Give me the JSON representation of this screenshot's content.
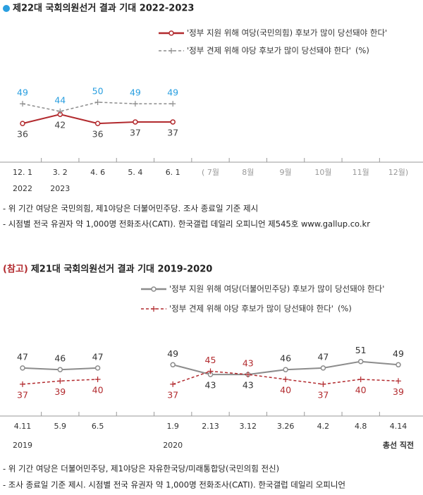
{
  "chart_data": [
    {
      "type": "line",
      "title": "제22대 국회의원선거 결과 기대 2022-2023",
      "categories": [
        "12. 1",
        "3. 2",
        "4. 6",
        "5. 4",
        "6. 1",
        "( 7월",
        "8월",
        "9월",
        "10월",
        "11월",
        "12월)"
      ],
      "sublabels": [
        "2022",
        "2023",
        null,
        null,
        null,
        null,
        null,
        null,
        null,
        null,
        null
      ],
      "series": [
        {
          "name": "'정부 지원 위해 여당(국민의힘) 후보가 많이 당선돼야 한다'",
          "color": "#b22a2e",
          "label_color": "#444444",
          "style": "solid",
          "values": [
            36,
            42,
            36,
            37,
            37,
            null,
            null,
            null,
            null,
            null,
            null
          ]
        },
        {
          "name": "'정부 견제 위해 야당 후보가 많이 당선돼야 한다'",
          "color": "#8c8c8c",
          "label_color": "#2a9fe0",
          "style": "dashed",
          "values": [
            49,
            44,
            50,
            49,
            49,
            null,
            null,
            null,
            null,
            null,
            null
          ]
        }
      ],
      "unit": "(%)",
      "notes": [
        "- 위 기간 여당은 국민의힘, 제1야당은 더불어민주당. 조사 종료일 기준 제시",
        "- 시점별 전국 유권자 약 1,000명 전화조사(CATI). 한국갤럽 데일리 오피니언 제545호 www.gallup.co.kr"
      ]
    },
    {
      "type": "line",
      "title_prefix": "(참고)",
      "title": "제21대 국회의원선거 결과 기대 2019-2020",
      "categories": [
        "4.11",
        "5.9",
        "6.5",
        null,
        "1.9",
        "2.13",
        "3.12",
        "3.26",
        "4.2",
        "4.8",
        "4.14"
      ],
      "sublabels": [
        "2019",
        null,
        null,
        null,
        "2020",
        null,
        null,
        null,
        null,
        null,
        "총선 직전"
      ],
      "series": [
        {
          "name": "'정부 지원 위해 여당(더불어민주당) 후보가 많이 당선돼야 한다'",
          "color": "#8c8c8c",
          "label_color": "#333333",
          "style": "solid",
          "values": [
            47,
            46,
            47,
            null,
            49,
            43,
            43,
            46,
            47,
            51,
            49
          ]
        },
        {
          "name": "'정부 견제 위해 야당 후보가 많이 당선돼야 한다'",
          "color": "#b22a2e",
          "label_color": "#b22a2e",
          "style": "dashed",
          "values": [
            37,
            39,
            40,
            null,
            37,
            45,
            43,
            40,
            37,
            40,
            39
          ]
        }
      ],
      "unit": "(%)",
      "notes": [
        "- 위 기간 여당은 더불어민주당, 제1야당은 자유한국당/미래통합당(국민의힘 전신)",
        "- 조사 종료일 기준 제시. 시점별 전국 유권자 약 1,000명 전화조사(CATI). 한국갤럽 데일리 오피니언"
      ]
    }
  ]
}
